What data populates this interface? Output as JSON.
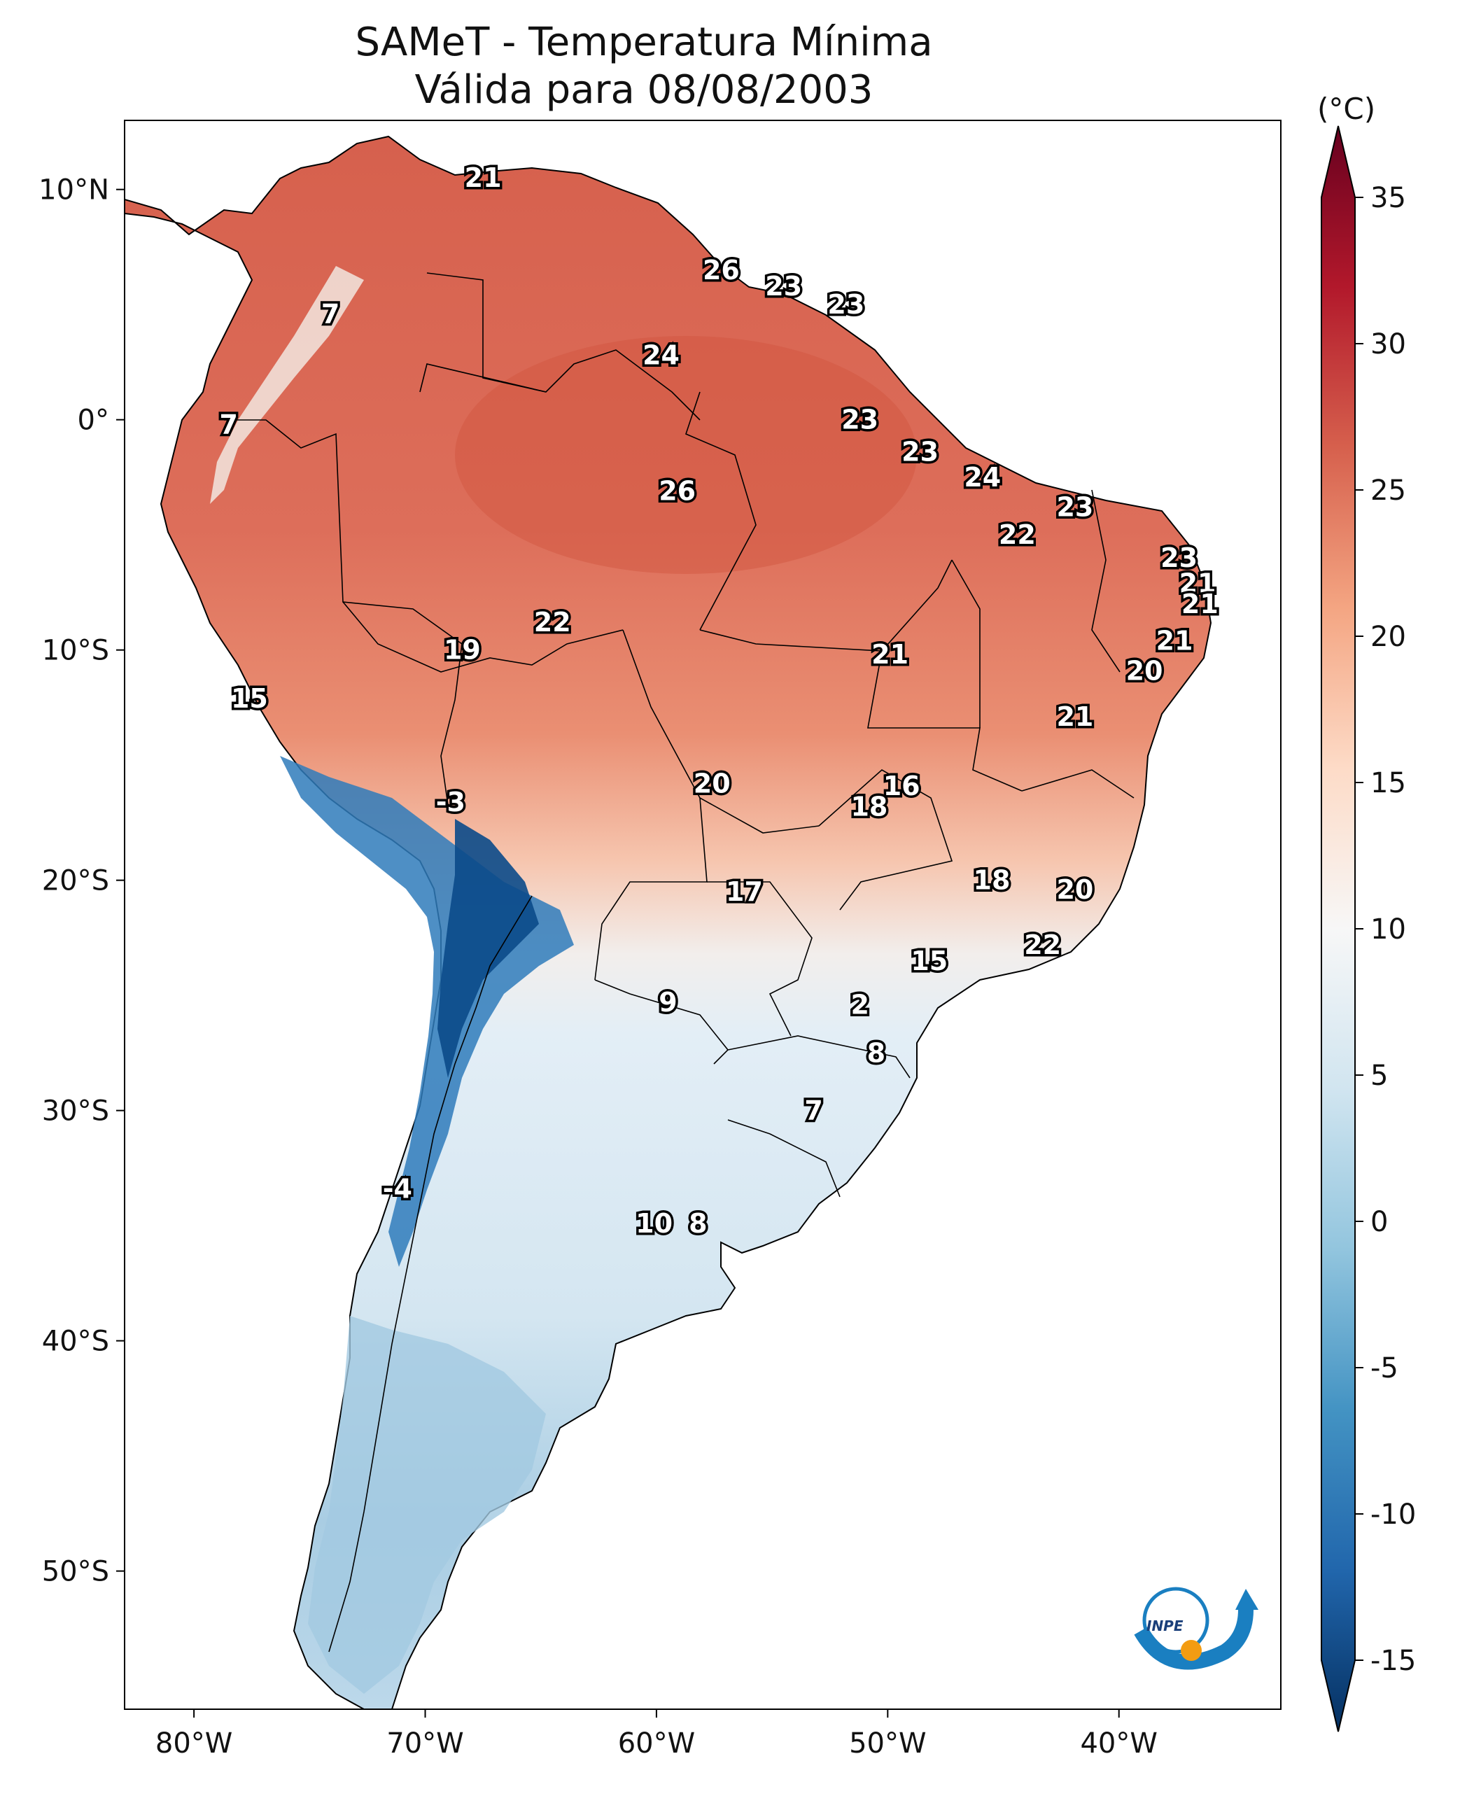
{
  "title": "SAMeT - Temperatura Mínima",
  "subtitle": "Válida para 08/08/2003",
  "colorbar": {
    "unit": "(°C)",
    "ticks": [
      "35",
      "30",
      "25",
      "20",
      "15",
      "10",
      "5",
      "0",
      "-5",
      "-10",
      "-15"
    ],
    "tick_values": [
      35,
      30,
      25,
      20,
      15,
      10,
      5,
      0,
      -5,
      -10,
      -15
    ],
    "range": [
      -15,
      35
    ],
    "colormap": "RdBu_r",
    "colors": [
      "#053061",
      "#2166ac",
      "#4393c3",
      "#92c5de",
      "#d1e5f0",
      "#f7f7f7",
      "#fddbc7",
      "#f4a582",
      "#d6604d",
      "#b2182b",
      "#67001f"
    ]
  },
  "axes": {
    "lon_labels": [
      "80°W",
      "70°W",
      "60°W",
      "50°W",
      "40°W"
    ],
    "lon_values": [
      -80,
      -70,
      -60,
      -50,
      -40
    ],
    "lat_labels": [
      "10°N",
      "0°",
      "10°S",
      "20°S",
      "30°S",
      "40°S",
      "50°S"
    ],
    "lat_values": [
      10,
      0,
      -10,
      -20,
      -30,
      -40,
      -50
    ],
    "extent": {
      "lon": [
        -83,
        -33
      ],
      "lat": [
        -56,
        13
      ]
    }
  },
  "station_labels": [
    {
      "text": "21",
      "lon": -67.5,
      "lat": 10.5
    },
    {
      "text": "26",
      "lon": -57.2,
      "lat": 6.5
    },
    {
      "text": "23",
      "lon": -54.5,
      "lat": 5.8
    },
    {
      "text": "23",
      "lon": -51.8,
      "lat": 5.0
    },
    {
      "text": "7",
      "lon": -74.1,
      "lat": 4.6
    },
    {
      "text": "24",
      "lon": -59.8,
      "lat": 2.8
    },
    {
      "text": "7",
      "lon": -78.5,
      "lat": -0.2
    },
    {
      "text": "23",
      "lon": -51.2,
      "lat": 0.0
    },
    {
      "text": "23",
      "lon": -48.6,
      "lat": -1.4
    },
    {
      "text": "24",
      "lon": -45.9,
      "lat": -2.5
    },
    {
      "text": "26",
      "lon": -59.1,
      "lat": -3.1
    },
    {
      "text": "23",
      "lon": -41.9,
      "lat": -3.8
    },
    {
      "text": "22",
      "lon": -44.4,
      "lat": -5.0
    },
    {
      "text": "23",
      "lon": -37.4,
      "lat": -6.0
    },
    {
      "text": "21",
      "lon": -36.6,
      "lat": -7.1
    },
    {
      "text": "21",
      "lon": -36.5,
      "lat": -8.0
    },
    {
      "text": "22",
      "lon": -64.5,
      "lat": -8.8
    },
    {
      "text": "21",
      "lon": -37.6,
      "lat": -9.6
    },
    {
      "text": "19",
      "lon": -68.4,
      "lat": -10.0
    },
    {
      "text": "21",
      "lon": -49.9,
      "lat": -10.2
    },
    {
      "text": "20",
      "lon": -38.9,
      "lat": -10.9
    },
    {
      "text": "15",
      "lon": -77.6,
      "lat": -12.1
    },
    {
      "text": "21",
      "lon": -41.9,
      "lat": -12.9
    },
    {
      "text": "16",
      "lon": -49.4,
      "lat": -15.9
    },
    {
      "text": "20",
      "lon": -57.6,
      "lat": -15.8
    },
    {
      "text": "18",
      "lon": -50.8,
      "lat": -16.8
    },
    {
      "text": "-3",
      "lon": -68.9,
      "lat": -16.6
    },
    {
      "text": "18",
      "lon": -45.5,
      "lat": -20.0
    },
    {
      "text": "20",
      "lon": -41.9,
      "lat": -20.4
    },
    {
      "text": "17",
      "lon": -56.2,
      "lat": -20.5
    },
    {
      "text": "22",
      "lon": -43.3,
      "lat": -22.8
    },
    {
      "text": "15",
      "lon": -48.2,
      "lat": -23.5
    },
    {
      "text": "9",
      "lon": -59.5,
      "lat": -25.3
    },
    {
      "text": "2",
      "lon": -51.2,
      "lat": -25.4
    },
    {
      "text": "8",
      "lon": -50.5,
      "lat": -27.5
    },
    {
      "text": "7",
      "lon": -53.2,
      "lat": -30.0
    },
    {
      "text": "-4",
      "lon": -71.2,
      "lat": -33.4
    },
    {
      "text": "10",
      "lon": -60.1,
      "lat": -34.9
    },
    {
      "text": "8",
      "lon": -58.2,
      "lat": -34.9
    }
  ],
  "logo_text": "INPE"
}
